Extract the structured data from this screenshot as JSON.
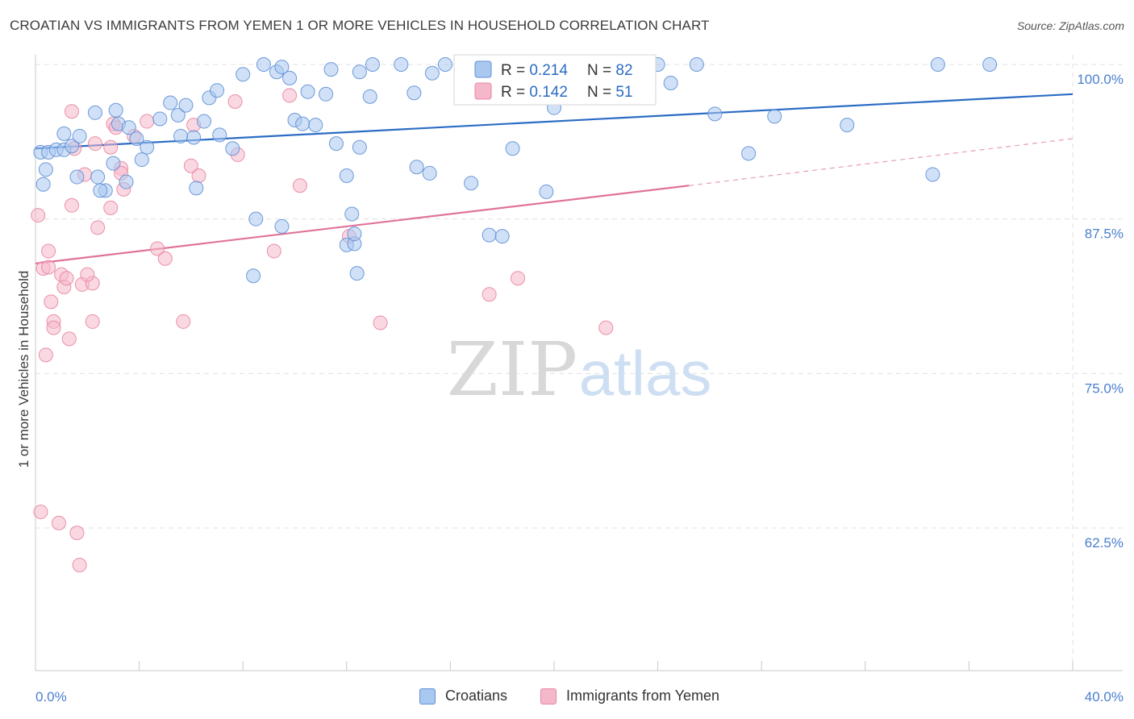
{
  "title": "CROATIAN VS IMMIGRANTS FROM YEMEN 1 OR MORE VEHICLES IN HOUSEHOLD CORRELATION CHART",
  "source": "Source: ZipAtlas.com",
  "watermark": {
    "zip": "ZIP",
    "atlas": "atlas"
  },
  "colors": {
    "blue_fill": "#a9c8f0",
    "blue_stroke": "#5f8fd6",
    "blue_line": "#2b6cc4",
    "pink_fill": "#f5b8cb",
    "pink_stroke": "#e8859f",
    "pink_line": "#e0739a",
    "tick_text": "#4a7fcf",
    "grid": "#e0e0e0"
  },
  "legend": {
    "rows": [
      {
        "r_label": "R = ",
        "r_value": "0.214",
        "n_label": "N = ",
        "n_value": "82"
      },
      {
        "r_label": "R = ",
        "r_value": "0.142",
        "n_label": "N = ",
        "n_value": "51"
      }
    ]
  },
  "bottom_legend": {
    "croatians": "Croatians",
    "yemen": "Immigrants from Yemen"
  },
  "chart_data": {
    "type": "scatter",
    "title": "CROATIAN VS IMMIGRANTS FROM YEMEN 1 OR MORE VEHICLES IN HOUSEHOLD CORRELATION CHART",
    "xlabel": "",
    "ylabel": "1 or more Vehicles in Household",
    "xlim": [
      0,
      40
    ],
    "ylim": [
      52.5,
      101.5
    ],
    "x_tick_labels": [
      "0.0%",
      "40.0%"
    ],
    "y_ticks": [
      100.0,
      87.5,
      75.0,
      62.5
    ],
    "y_tick_labels": [
      "100.0%",
      "87.5%",
      "75.0%",
      "62.5%"
    ],
    "grid": true,
    "legend_position": "top-center",
    "series": [
      {
        "name": "Croatians",
        "R": 0.214,
        "N": 82,
        "trend": {
          "x": [
            0,
            40
          ],
          "y": [
            93.2,
            97.6
          ]
        },
        "points": [
          [
            0.2,
            92.9
          ],
          [
            0.5,
            92.9
          ],
          [
            0.8,
            93.1
          ],
          [
            1.1,
            93.1
          ],
          [
            0.4,
            91.5
          ],
          [
            0.3,
            90.3
          ],
          [
            1.4,
            93.4
          ],
          [
            1.1,
            94.4
          ],
          [
            1.7,
            94.2
          ],
          [
            2.3,
            96.1
          ],
          [
            3.1,
            96.3
          ],
          [
            3.2,
            95.2
          ],
          [
            3.6,
            94.9
          ],
          [
            3.9,
            94.0
          ],
          [
            4.3,
            93.3
          ],
          [
            4.8,
            95.6
          ],
          [
            5.2,
            96.9
          ],
          [
            5.5,
            95.9
          ],
          [
            5.8,
            96.7
          ],
          [
            6.1,
            94.1
          ],
          [
            6.5,
            95.4
          ],
          [
            6.7,
            97.3
          ],
          [
            5.6,
            94.2
          ],
          [
            7.1,
            94.3
          ],
          [
            7.6,
            93.2
          ],
          [
            7.0,
            97.9
          ],
          [
            8.0,
            99.2
          ],
          [
            9.3,
            99.4
          ],
          [
            9.5,
            99.8
          ],
          [
            8.8,
            100.0
          ],
          [
            9.8,
            98.9
          ],
          [
            10.0,
            95.5
          ],
          [
            10.5,
            97.8
          ],
          [
            10.3,
            95.2
          ],
          [
            10.8,
            95.1
          ],
          [
            11.2,
            97.6
          ],
          [
            11.4,
            99.6
          ],
          [
            11.6,
            93.6
          ],
          [
            12.0,
            91.0
          ],
          [
            12.2,
            87.9
          ],
          [
            12.5,
            99.4
          ],
          [
            12.9,
            97.4
          ],
          [
            13.0,
            100.0
          ],
          [
            14.1,
            100.0
          ],
          [
            14.6,
            97.7
          ],
          [
            14.7,
            91.7
          ],
          [
            12.5,
            93.3
          ],
          [
            15.2,
            91.2
          ],
          [
            15.8,
            100.0
          ],
          [
            15.3,
            99.3
          ],
          [
            17.5,
            86.2
          ],
          [
            16.8,
            90.4
          ],
          [
            18.4,
            93.2
          ],
          [
            19.7,
            89.7
          ],
          [
            18.0,
            86.1
          ],
          [
            20.0,
            96.5
          ],
          [
            22.0,
            100.0
          ],
          [
            24.0,
            100.0
          ],
          [
            24.5,
            98.5
          ],
          [
            26.2,
            96.0
          ],
          [
            25.5,
            100.0
          ],
          [
            27.5,
            92.8
          ],
          [
            28.5,
            95.8
          ],
          [
            31.3,
            95.1
          ],
          [
            34.6,
            91.1
          ],
          [
            34.8,
            100.0
          ],
          [
            36.8,
            100.0
          ],
          [
            2.4,
            90.9
          ],
          [
            1.6,
            90.9
          ],
          [
            3.0,
            92.0
          ],
          [
            2.7,
            89.8
          ],
          [
            3.5,
            90.5
          ],
          [
            4.1,
            92.3
          ],
          [
            2.5,
            89.8
          ],
          [
            8.5,
            87.5
          ],
          [
            9.5,
            86.9
          ],
          [
            8.4,
            82.9
          ],
          [
            12.0,
            85.4
          ],
          [
            12.3,
            85.5
          ],
          [
            12.3,
            86.3
          ],
          [
            6.2,
            90.0
          ],
          [
            12.4,
            83.1
          ]
        ]
      },
      {
        "name": "Immigrants from Yemen",
        "R": 0.142,
        "N": 51,
        "trend": {
          "x": [
            0,
            25.2
          ],
          "y": [
            83.9,
            90.2
          ]
        },
        "trend_dashed": {
          "x": [
            25.2,
            40
          ],
          "y": [
            90.2,
            94.0
          ]
        },
        "points": [
          [
            0.1,
            87.8
          ],
          [
            0.3,
            83.5
          ],
          [
            0.5,
            83.6
          ],
          [
            0.5,
            84.9
          ],
          [
            0.6,
            80.8
          ],
          [
            0.7,
            79.2
          ],
          [
            0.7,
            78.7
          ],
          [
            0.4,
            76.5
          ],
          [
            1.0,
            83.0
          ],
          [
            1.1,
            82.0
          ],
          [
            1.2,
            82.7
          ],
          [
            1.3,
            77.8
          ],
          [
            1.4,
            88.6
          ],
          [
            1.4,
            96.2
          ],
          [
            1.5,
            93.2
          ],
          [
            1.9,
            91.1
          ],
          [
            1.8,
            82.2
          ],
          [
            2.2,
            82.3
          ],
          [
            2.0,
            83.0
          ],
          [
            2.2,
            79.2
          ],
          [
            2.3,
            93.6
          ],
          [
            2.4,
            86.8
          ],
          [
            2.9,
            88.4
          ],
          [
            3.0,
            95.2
          ],
          [
            3.1,
            94.9
          ],
          [
            3.3,
            91.6
          ],
          [
            3.3,
            91.2
          ],
          [
            3.4,
            89.9
          ],
          [
            3.8,
            94.2
          ],
          [
            4.3,
            95.4
          ],
          [
            4.7,
            85.1
          ],
          [
            5.0,
            84.3
          ],
          [
            5.7,
            79.2
          ],
          [
            6.0,
            91.8
          ],
          [
            6.1,
            95.1
          ],
          [
            6.3,
            91.0
          ],
          [
            7.7,
            97.0
          ],
          [
            7.8,
            92.7
          ],
          [
            9.2,
            84.9
          ],
          [
            9.8,
            97.5
          ],
          [
            10.2,
            90.2
          ],
          [
            12.1,
            86.1
          ],
          [
            13.3,
            79.1
          ],
          [
            17.5,
            81.4
          ],
          [
            18.6,
            82.7
          ],
          [
            22.0,
            78.7
          ],
          [
            0.2,
            63.8
          ],
          [
            0.9,
            62.9
          ],
          [
            1.6,
            62.1
          ],
          [
            1.7,
            59.5
          ],
          [
            2.9,
            93.3
          ]
        ]
      }
    ]
  }
}
